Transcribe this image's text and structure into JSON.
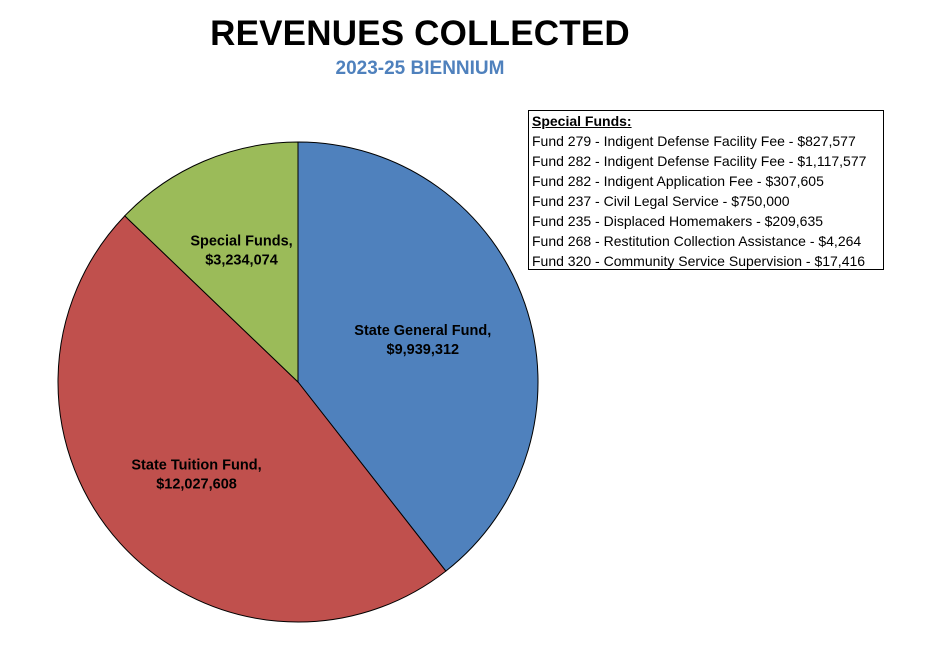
{
  "title": "REVENUES COLLECTED",
  "subtitle": "2023-25 BIENNIUM",
  "colors": {
    "subtitle": "#4f81bd"
  },
  "chart_data": {
    "type": "pie",
    "title": "REVENUES COLLECTED",
    "subtitle": "2023-25 BIENNIUM",
    "slices": [
      {
        "label": "State General Fund,",
        "value_label": "$9,939,312",
        "value": 9939312,
        "color": "#4f81bd"
      },
      {
        "label": "State Tuition Fund,",
        "value_label": "$12,027,608",
        "value": 12027608,
        "color": "#c0504d"
      },
      {
        "label": "Special Funds,",
        "value_label": "$3,234,074",
        "value": 3234074,
        "color": "#9bbb59"
      }
    ]
  },
  "legend": {
    "heading": "Special Funds:",
    "items": [
      "Fund 279 - Indigent Defense Facility Fee - $827,577",
      "Fund 282 - Indigent Defense Facility Fee - $1,117,577",
      "Fund 282 - Indigent Application Fee - $307,605",
      "Fund 237 - Civil Legal Service - $750,000",
      "Fund 235 - Displaced Homemakers - $209,635",
      "Fund 268 - Restitution Collection Assistance - $4,264",
      "Fund 320 - Community Service Supervision - $17,416"
    ]
  }
}
